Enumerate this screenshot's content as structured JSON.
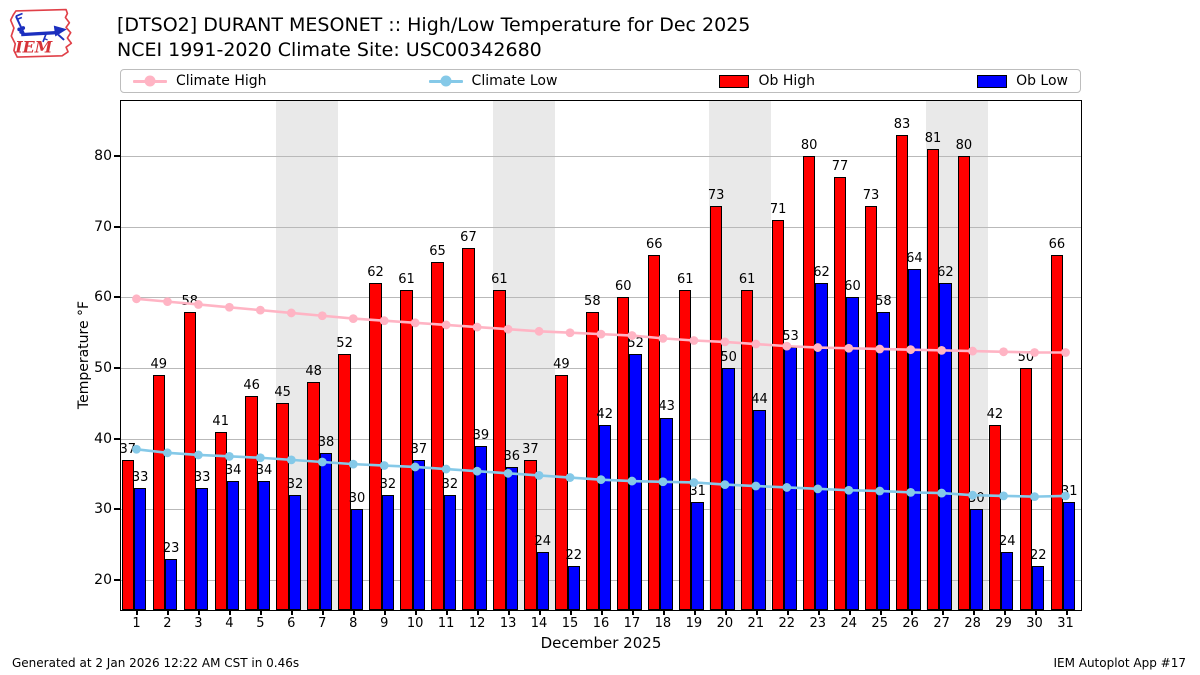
{
  "header": {
    "title_line1": "[DTSO2] DURANT MESONET :: High/Low Temperature for Dec 2025",
    "title_line2": "NCEI 1991-2020 Climate Site: USC00342680",
    "logo_text": "IEM"
  },
  "legend": {
    "items": [
      {
        "label": "Climate High",
        "type": "line",
        "color": "#ffb4c4"
      },
      {
        "label": "Climate Low",
        "type": "line",
        "color": "#85c9e8"
      },
      {
        "label": "Ob High",
        "type": "patch",
        "color": "#ff0000"
      },
      {
        "label": "Ob Low",
        "type": "patch",
        "color": "#0000ff"
      }
    ]
  },
  "chart_data": {
    "type": "bar",
    "title": "[DTSO2] DURANT MESONET :: High/Low Temperature for Dec 2025",
    "subtitle": "NCEI 1991-2020 Climate Site: USC00342680",
    "xlabel": "December 2025",
    "ylabel": "Temperature °F",
    "x": [
      1,
      2,
      3,
      4,
      5,
      6,
      7,
      8,
      9,
      10,
      11,
      12,
      13,
      14,
      15,
      16,
      17,
      18,
      19,
      20,
      21,
      22,
      23,
      24,
      25,
      26,
      27,
      28,
      29,
      30,
      31
    ],
    "yticks": [
      20,
      30,
      40,
      50,
      60,
      70,
      80
    ],
    "ylim": [
      15.75,
      87.8
    ],
    "grid": true,
    "legend_position": "top",
    "weekend_days": [
      6,
      7,
      13,
      14,
      20,
      21,
      27,
      28
    ],
    "series": [
      {
        "name": "Ob High",
        "type": "bar",
        "color": "#ff0000",
        "values": [
          37,
          49,
          58,
          41,
          46,
          45,
          48,
          52,
          62,
          61,
          65,
          67,
          61,
          37,
          49,
          58,
          60,
          66,
          61,
          73,
          61,
          71,
          80,
          77,
          73,
          83,
          81,
          80,
          42,
          50,
          66
        ]
      },
      {
        "name": "Ob Low",
        "type": "bar",
        "color": "#0000ff",
        "values": [
          33,
          23,
          33,
          34,
          34,
          32,
          38,
          30,
          32,
          37,
          32,
          39,
          36,
          24,
          22,
          42,
          52,
          43,
          31,
          50,
          44,
          53,
          62,
          60,
          58,
          64,
          62,
          30,
          24,
          22,
          31
        ]
      },
      {
        "name": "Climate High",
        "type": "line",
        "color": "#ffb4c4",
        "values": [
          59.8,
          59.4,
          59.0,
          58.6,
          58.2,
          57.8,
          57.4,
          57.0,
          56.7,
          56.4,
          56.1,
          55.8,
          55.5,
          55.2,
          55.0,
          54.8,
          54.6,
          54.2,
          53.9,
          53.7,
          53.4,
          53.1,
          52.9,
          52.8,
          52.7,
          52.6,
          52.5,
          52.4,
          52.3,
          52.2,
          52.2
        ]
      },
      {
        "name": "Climate Low",
        "type": "line",
        "color": "#85c9e8",
        "values": [
          38.5,
          38.0,
          37.7,
          37.5,
          37.3,
          37.0,
          36.7,
          36.4,
          36.2,
          36.0,
          35.7,
          35.4,
          35.1,
          34.8,
          34.5,
          34.2,
          34.0,
          33.9,
          33.8,
          33.5,
          33.3,
          33.1,
          32.9,
          32.7,
          32.6,
          32.4,
          32.3,
          32.0,
          31.9,
          31.8,
          31.9
        ]
      }
    ]
  },
  "footer": {
    "left": "Generated at 2 Jan 2026 12:22 AM CST in 0.46s",
    "right": "IEM Autoplot App #17"
  }
}
